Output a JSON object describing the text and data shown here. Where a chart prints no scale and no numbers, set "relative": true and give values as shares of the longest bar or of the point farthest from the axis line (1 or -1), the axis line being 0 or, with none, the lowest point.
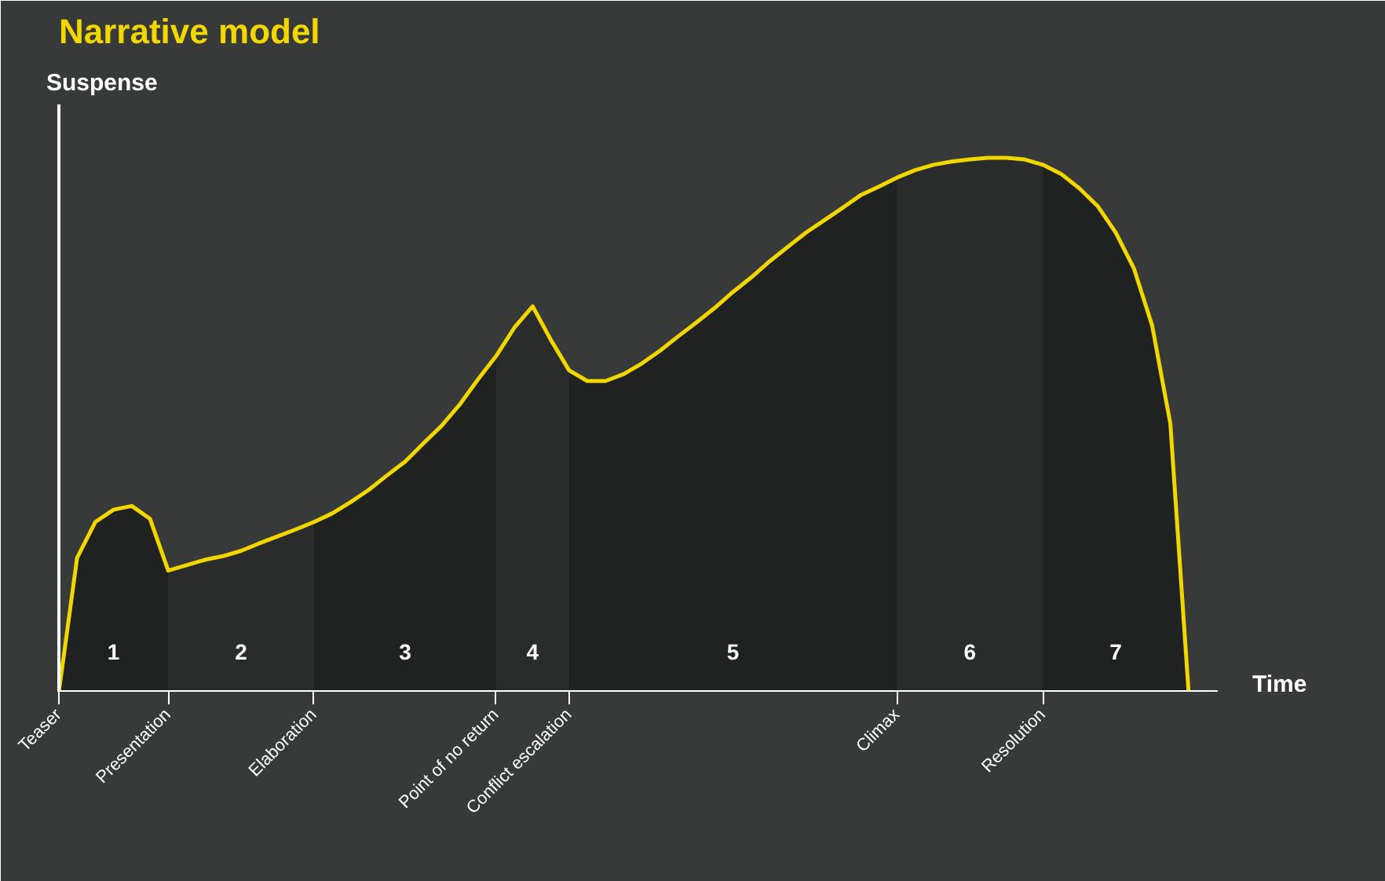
{
  "chart_data": {
    "type": "area",
    "title": "Narrative model",
    "ylabel": "Suspense",
    "xlabel": "Time",
    "relative": true,
    "categories": [
      "Teaser",
      null,
      null,
      null,
      null,
      null,
      "Presentation",
      null,
      null,
      null,
      null,
      null,
      null,
      null,
      "Elaboration",
      null,
      null,
      null,
      null,
      null,
      null,
      null,
      null,
      null,
      "Point of no return",
      null,
      null,
      null,
      "Conflict escalation",
      null,
      null,
      null,
      null,
      null,
      null,
      null,
      null,
      null,
      null,
      null,
      null,
      null,
      null,
      null,
      null,
      null,
      "Climax",
      null,
      null,
      null,
      null,
      null,
      null,
      null,
      "Resolution",
      null,
      null,
      null,
      null,
      null,
      null,
      null,
      null
    ],
    "series": [
      {
        "name": "1",
        "color": "#202121",
        "values": [
          0,
          0.251,
          0.318,
          0.341,
          0.348,
          0.324,
          0.227,
          null,
          null,
          null,
          null,
          null,
          null,
          null,
          null,
          null,
          null,
          null,
          null,
          null,
          null,
          null,
          null,
          null,
          null,
          null,
          null,
          null,
          null,
          null,
          null,
          null,
          null,
          null,
          null,
          null,
          null,
          null,
          null,
          null,
          null,
          null,
          null,
          null,
          null,
          null,
          null,
          null,
          null,
          null,
          null,
          null,
          null,
          null,
          null,
          null,
          null,
          null,
          null,
          null,
          null,
          null,
          null
        ]
      },
      {
        "name": "2",
        "color": "#2a2b2b",
        "values": [
          null,
          null,
          null,
          null,
          null,
          null,
          0.227,
          0.237,
          0.247,
          0.254,
          0.264,
          0.278,
          0.291,
          0.304,
          0.318,
          null,
          null,
          null,
          null,
          null,
          null,
          null,
          null,
          null,
          null,
          null,
          null,
          null,
          null,
          null,
          null,
          null,
          null,
          null,
          null,
          null,
          null,
          null,
          null,
          null,
          null,
          null,
          null,
          null,
          null,
          null,
          null,
          null,
          null,
          null,
          null,
          null,
          null,
          null,
          null,
          null,
          null,
          null,
          null,
          null,
          null,
          null,
          null
        ]
      },
      {
        "name": "3",
        "color": "#202121",
        "values": [
          null,
          null,
          null,
          null,
          null,
          null,
          null,
          null,
          null,
          null,
          null,
          null,
          null,
          null,
          0.318,
          0.334,
          0.355,
          0.378,
          0.405,
          0.431,
          0.465,
          0.498,
          0.538,
          0.585,
          0.629,
          null,
          null,
          null,
          null,
          null,
          null,
          null,
          null,
          null,
          null,
          null,
          null,
          null,
          null,
          null,
          null,
          null,
          null,
          null,
          null,
          null,
          null,
          null,
          null,
          null,
          null,
          null,
          null,
          null,
          null,
          null,
          null,
          null,
          null,
          null,
          null,
          null,
          null
        ]
      },
      {
        "name": "4",
        "color": "#2a2b2b",
        "values": [
          null,
          null,
          null,
          null,
          null,
          null,
          null,
          null,
          null,
          null,
          null,
          null,
          null,
          null,
          null,
          null,
          null,
          null,
          null,
          null,
          null,
          null,
          null,
          null,
          0.629,
          0.682,
          0.722,
          0.659,
          0.602,
          null,
          null,
          null,
          null,
          null,
          null,
          null,
          null,
          null,
          null,
          null,
          null,
          null,
          null,
          null,
          null,
          null,
          null,
          null,
          null,
          null,
          null,
          null,
          null,
          null,
          null,
          null,
          null,
          null,
          null,
          null,
          null,
          null,
          null
        ]
      },
      {
        "name": "5",
        "color": "#202121",
        "values": [
          null,
          null,
          null,
          null,
          null,
          null,
          null,
          null,
          null,
          null,
          null,
          null,
          null,
          null,
          null,
          null,
          null,
          null,
          null,
          null,
          null,
          null,
          null,
          null,
          null,
          null,
          null,
          null,
          0.602,
          0.582,
          0.582,
          0.595,
          0.615,
          0.639,
          0.666,
          0.692,
          0.719,
          0.749,
          0.776,
          0.806,
          0.833,
          0.86,
          0.883,
          0.906,
          0.93,
          0.946,
          0.963,
          null,
          null,
          null,
          null,
          null,
          null,
          null,
          null,
          null,
          null,
          null,
          null,
          null,
          null,
          null,
          null
        ]
      },
      {
        "name": "6",
        "color": "#2a2b2b",
        "values": [
          null,
          null,
          null,
          null,
          null,
          null,
          null,
          null,
          null,
          null,
          null,
          null,
          null,
          null,
          null,
          null,
          null,
          null,
          null,
          null,
          null,
          null,
          null,
          null,
          null,
          null,
          null,
          null,
          null,
          null,
          null,
          null,
          null,
          null,
          null,
          null,
          null,
          null,
          null,
          null,
          null,
          null,
          null,
          null,
          null,
          null,
          0.963,
          0.977,
          0.987,
          0.993,
          0.997,
          1,
          1,
          0.997,
          0.987,
          null,
          null,
          null,
          null,
          null,
          null,
          null,
          null
        ]
      },
      {
        "name": "7",
        "color": "#202121",
        "values": [
          null,
          null,
          null,
          null,
          null,
          null,
          null,
          null,
          null,
          null,
          null,
          null,
          null,
          null,
          null,
          null,
          null,
          null,
          null,
          null,
          null,
          null,
          null,
          null,
          null,
          null,
          null,
          null,
          null,
          null,
          null,
          null,
          null,
          null,
          null,
          null,
          null,
          null,
          null,
          null,
          null,
          null,
          null,
          null,
          null,
          null,
          null,
          null,
          null,
          null,
          null,
          null,
          null,
          null,
          0.987,
          0.97,
          0.943,
          0.91,
          0.86,
          0.793,
          0.686,
          0.502,
          0
        ]
      },
      {
        "type": "line",
        "color": "#f2d600",
        "values": [
          0,
          0.251,
          0.318,
          0.341,
          0.348,
          0.324,
          0.227,
          0.237,
          0.247,
          0.254,
          0.264,
          0.278,
          0.291,
          0.304,
          0.318,
          0.334,
          0.355,
          0.378,
          0.405,
          0.431,
          0.465,
          0.498,
          0.538,
          0.585,
          0.629,
          0.682,
          0.722,
          0.659,
          0.602,
          0.582,
          0.582,
          0.595,
          0.615,
          0.639,
          0.666,
          0.692,
          0.719,
          0.749,
          0.776,
          0.806,
          0.833,
          0.86,
          0.883,
          0.906,
          0.93,
          0.946,
          0.963,
          0.977,
          0.987,
          0.993,
          0.997,
          1,
          1,
          0.997,
          0.987,
          0.97,
          0.943,
          0.91,
          0.86,
          0.793,
          0.686,
          0.502,
          0
        ]
      }
    ],
    "grid": false,
    "legend": false,
    "marker": "none",
    "line_style": "solid"
  }
}
